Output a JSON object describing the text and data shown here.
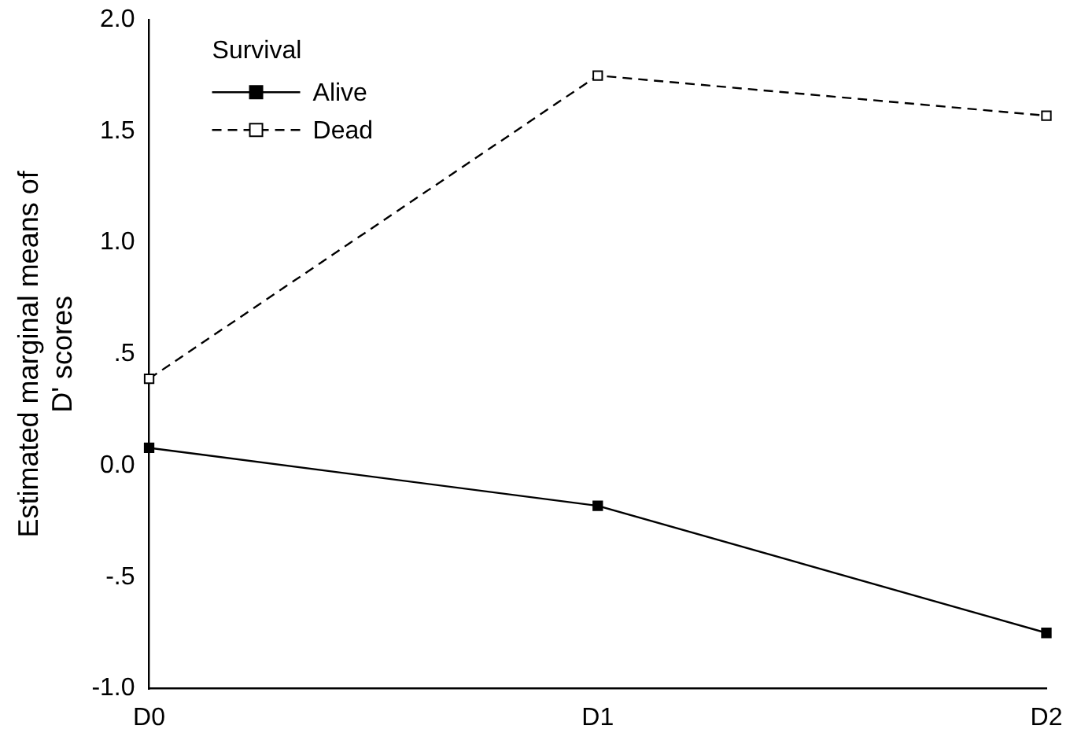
{
  "chart_data": {
    "type": "line",
    "ylabel": "Estimated marginal means of\nD' scores",
    "legend_title": "Survival",
    "legend": "top left",
    "marker": "square",
    "categories": [
      "D0",
      "D1",
      "D2"
    ],
    "series": [
      {
        "name": "Alive",
        "color": "#000000",
        "line_style": "solid",
        "values": [
          0.08,
          -0.18,
          -0.75
        ]
      },
      {
        "name": "Dead",
        "color": "#000000",
        "line_style": "dashed",
        "values": [
          0.39,
          1.75,
          1.57
        ]
      }
    ],
    "ylim": [
      -1.0,
      2.0
    ],
    "yticks": [
      {
        "value": -1.0,
        "label": "-1.0"
      },
      {
        "value": -0.5,
        "label": "-.5"
      },
      {
        "value": 0,
        "label": "0.0"
      },
      {
        "value": 0.5,
        "label": ".5"
      },
      {
        "value": 1.0,
        "label": "1.0"
      },
      {
        "value": 1.5,
        "label": "1.5"
      },
      {
        "value": 2.0,
        "label": "2.0"
      }
    ],
    "grid": false
  }
}
